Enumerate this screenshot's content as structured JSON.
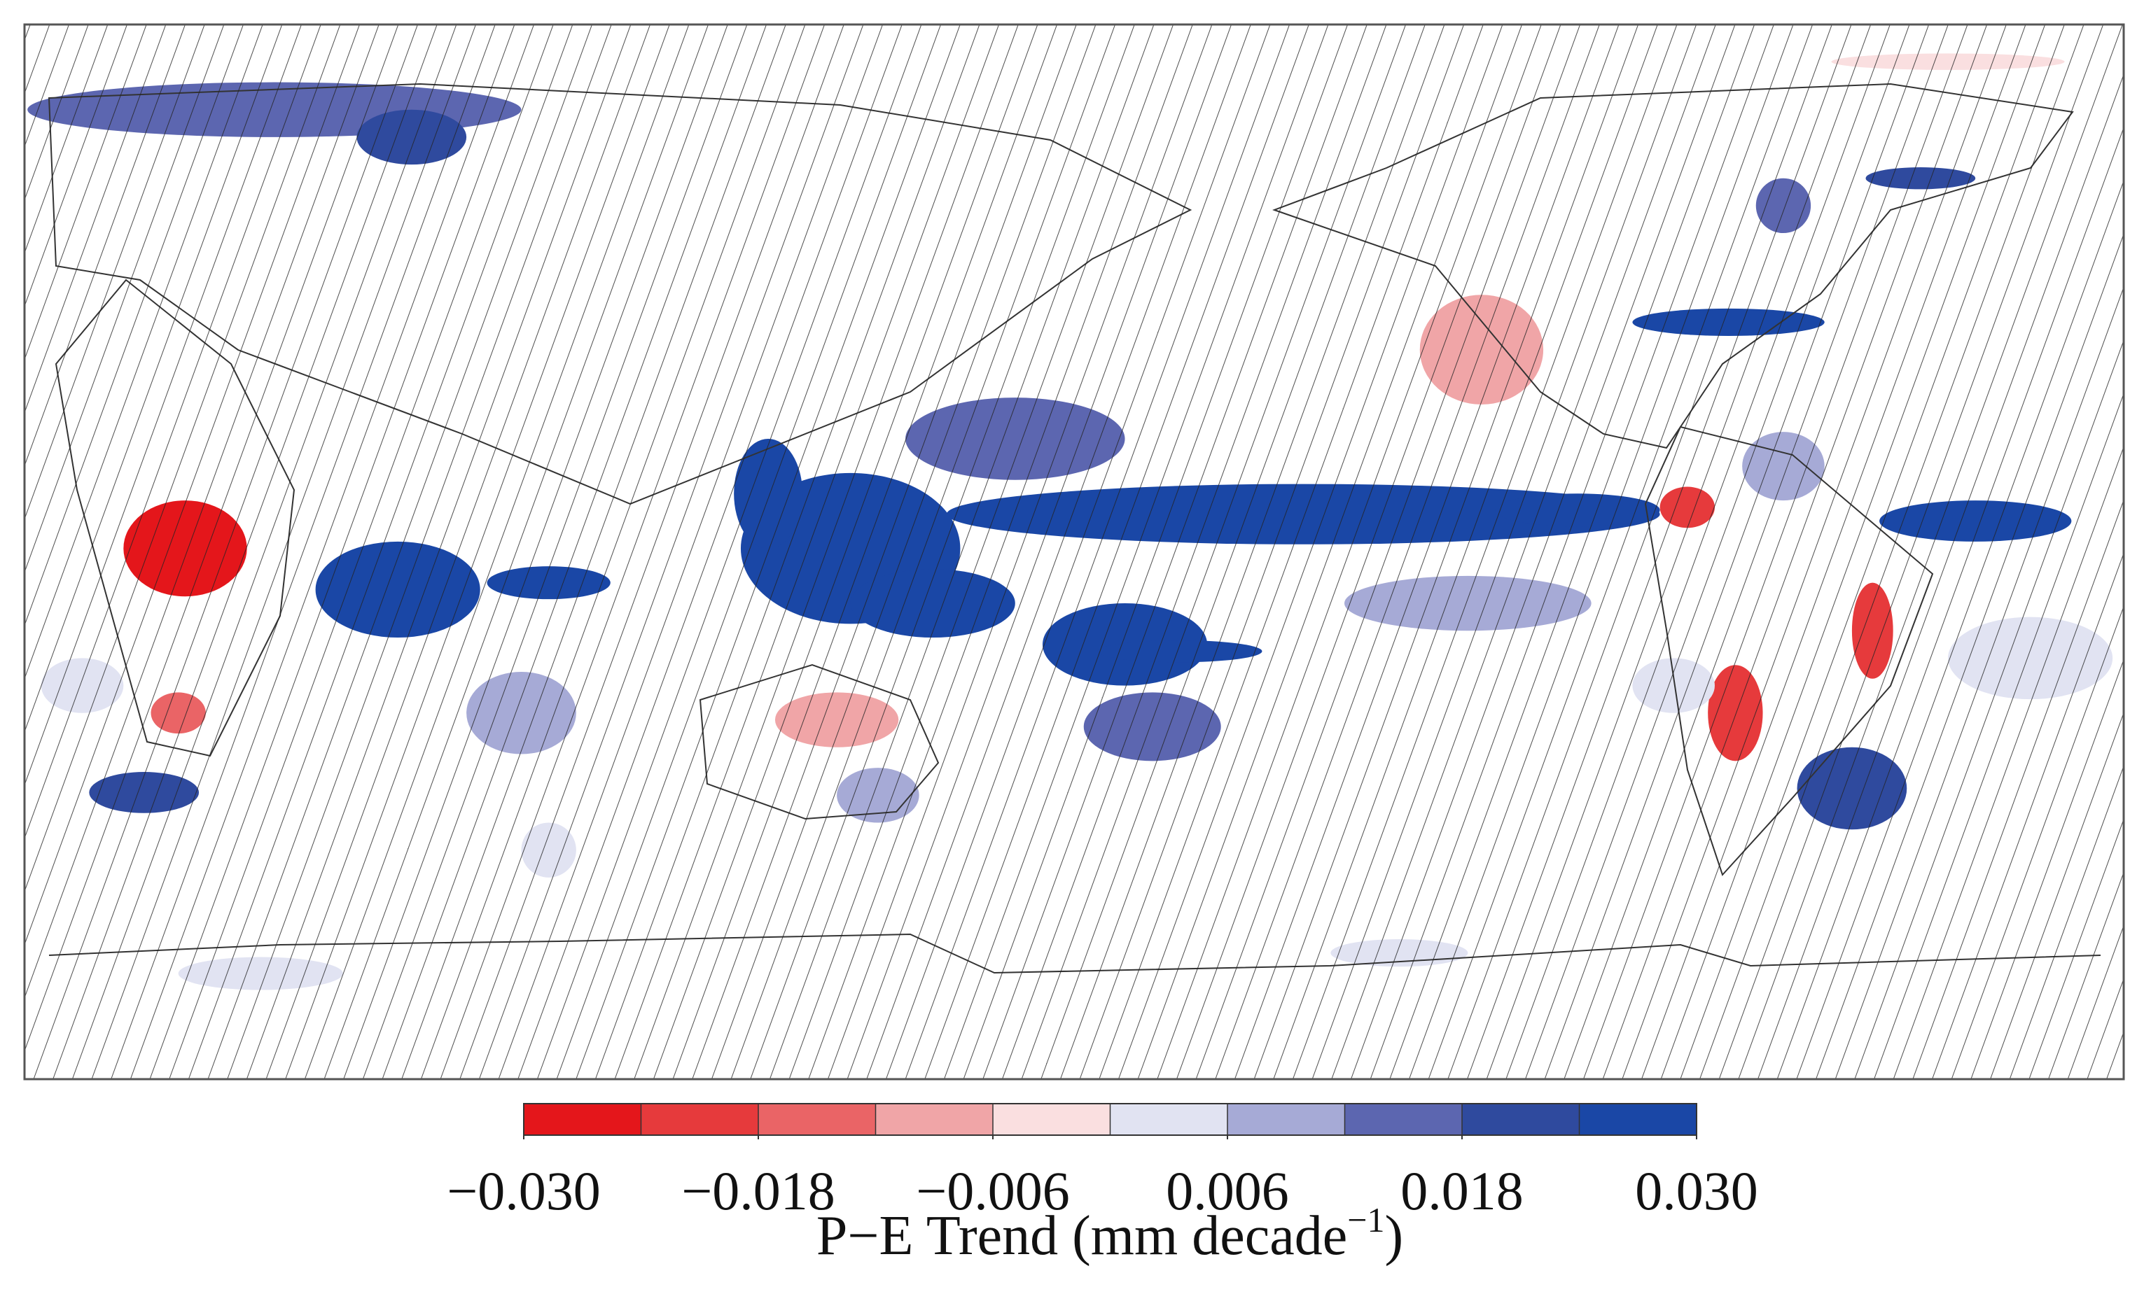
{
  "map": {
    "colorbar": {
      "levels": [
        -0.03,
        -0.024,
        -0.018,
        -0.012,
        -0.006,
        0.0,
        0.006,
        0.012,
        0.018,
        0.024,
        0.03
      ],
      "colors": [
        "#e4161b",
        "#e63a3c",
        "#ea6466",
        "#f0a5a7",
        "#fadfe0",
        "#e1e3f2",
        "#a6aad6",
        "#5c66b0",
        "#2f4a9e",
        "#1a47a6"
      ],
      "ticks": [
        {
          "value": -0.03,
          "label": "−0.030"
        },
        {
          "value": -0.018,
          "label": "−0.018"
        },
        {
          "value": -0.006,
          "label": "−0.006"
        },
        {
          "value": 0.006,
          "label": "0.006"
        },
        {
          "value": 0.018,
          "label": "0.018"
        },
        {
          "value": 0.03,
          "label": "0.030"
        }
      ],
      "label": {
        "text": "P−E Trend (mm decade",
        "superscript": "−1",
        "suffix": ")"
      }
    }
  }
}
